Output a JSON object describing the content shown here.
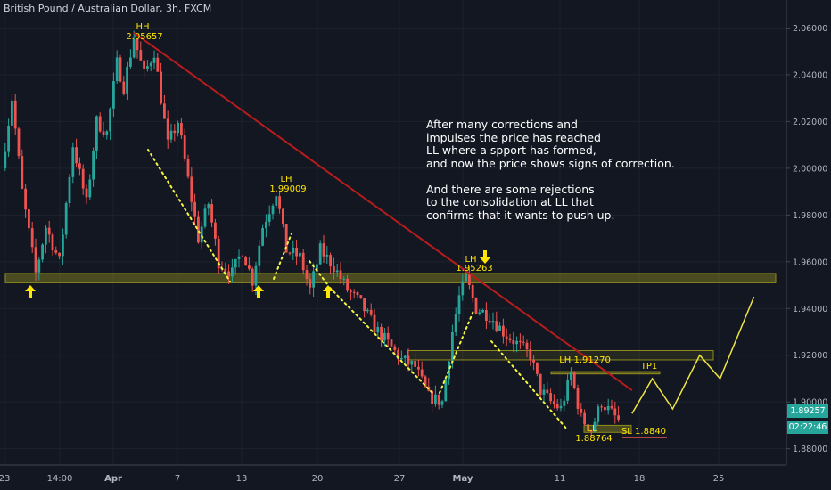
{
  "header": {
    "title": "British Pound / Australian Dollar, 3h, FXCM"
  },
  "price_tags": {
    "last_price": "1.89257",
    "countdown": "02:22:46"
  },
  "annotation": {
    "lines": [
      "After many corrections and",
      "impulses the price has reached",
      "LL where a spport has formed,",
      "and now the price shows signs of correction.",
      "",
      "And there are some rejections",
      "to the consolidation at LL that",
      "confirms that it wants to push up."
    ]
  },
  "chart_data": {
    "type": "candlestick",
    "title": "British Pound / Australian Dollar, 3h, FXCM",
    "x_tick_labels": [
      "23",
      "14:00",
      "Apr",
      "7",
      "13",
      "20",
      "27",
      "May",
      "11",
      "18",
      "25"
    ],
    "y_tick_labels": [
      "1.88000",
      "1.90000",
      "1.92000",
      "1.94000",
      "1.96000",
      "1.98000",
      "2.00000",
      "2.02000",
      "2.04000",
      "2.06000"
    ],
    "ylim": [
      1.873,
      2.072
    ],
    "grid": true,
    "price_path": [
      [
        0,
        2.0
      ],
      [
        1.5,
        2.03
      ],
      [
        3,
        1.99
      ],
      [
        5,
        1.955
      ],
      [
        6.5,
        1.975
      ],
      [
        8.5,
        1.96
      ],
      [
        10.5,
        2.01
      ],
      [
        12.5,
        1.985
      ],
      [
        14,
        2.02
      ],
      [
        15.5,
        2.015
      ],
      [
        17,
        2.045
      ],
      [
        18,
        2.035
      ],
      [
        19.5,
        2.056
      ],
      [
        21,
        2.04
      ],
      [
        22.5,
        2.05
      ],
      [
        24.5,
        2.01
      ],
      [
        26,
        2.02
      ],
      [
        27.5,
        1.995
      ],
      [
        29,
        1.97
      ],
      [
        30.5,
        1.985
      ],
      [
        32,
        1.96
      ],
      [
        34,
        1.955
      ],
      [
        35.5,
        1.965
      ],
      [
        37,
        1.952
      ],
      [
        38.5,
        1.975
      ],
      [
        40.5,
        1.99
      ],
      [
        42,
        1.965
      ],
      [
        44,
        1.962
      ],
      [
        45.5,
        1.948
      ],
      [
        47,
        1.965
      ],
      [
        49,
        1.958
      ],
      [
        51,
        1.948
      ],
      [
        53,
        1.942
      ],
      [
        55,
        1.932
      ],
      [
        57,
        1.925
      ],
      [
        59,
        1.918
      ],
      [
        61,
        1.915
      ],
      [
        63,
        1.902
      ],
      [
        65,
        1.9
      ],
      [
        66.5,
        1.93
      ],
      [
        67.5,
        1.945
      ],
      [
        68.5,
        1.953
      ],
      [
        70,
        1.94
      ],
      [
        72,
        1.937
      ],
      [
        74,
        1.93
      ],
      [
        76,
        1.925
      ],
      [
        78,
        1.92
      ],
      [
        79.5,
        1.905
      ],
      [
        81,
        1.9
      ],
      [
        82.5,
        1.897
      ],
      [
        84,
        1.912
      ],
      [
        85.5,
        1.893
      ],
      [
        87,
        1.888
      ],
      [
        88.5,
        1.9
      ],
      [
        90,
        1.895
      ],
      [
        91,
        1.892
      ]
    ],
    "annotations": [
      {
        "label": "HH",
        "value": "2.05657"
      },
      {
        "label": "LH",
        "value": "1.99009"
      },
      {
        "label": "LH",
        "value": "1.95263"
      },
      {
        "label": "LH",
        "value": "1.91270"
      },
      {
        "label": "TP1",
        "value": ""
      },
      {
        "label": "LL",
        "value": "1.88764"
      },
      {
        "label": "SL",
        "value": "1.8840"
      }
    ],
    "support_zone": [
      1.951,
      1.955
    ],
    "resistance_zone": [
      1.918,
      1.922
    ],
    "ll_zone": [
      1.887,
      1.89
    ],
    "trendline": [
      [
        19.5,
        2.058
      ],
      [
        93,
        1.905
      ]
    ],
    "projection": [
      [
        93,
        1.895
      ],
      [
        96,
        1.91
      ],
      [
        99,
        1.897
      ],
      [
        103,
        1.92
      ],
      [
        106,
        1.91
      ],
      [
        111,
        1.945
      ]
    ],
    "colors": {
      "background": "#131722",
      "up_candle": "#26a69a",
      "down_candle": "#ef5350",
      "trendline": "#b71c1c",
      "zone": "#8f8c1e",
      "projection": "#f0e442",
      "dots": "#f5f543",
      "arrows": "#ffe600",
      "labels": "#ffe600"
    }
  }
}
